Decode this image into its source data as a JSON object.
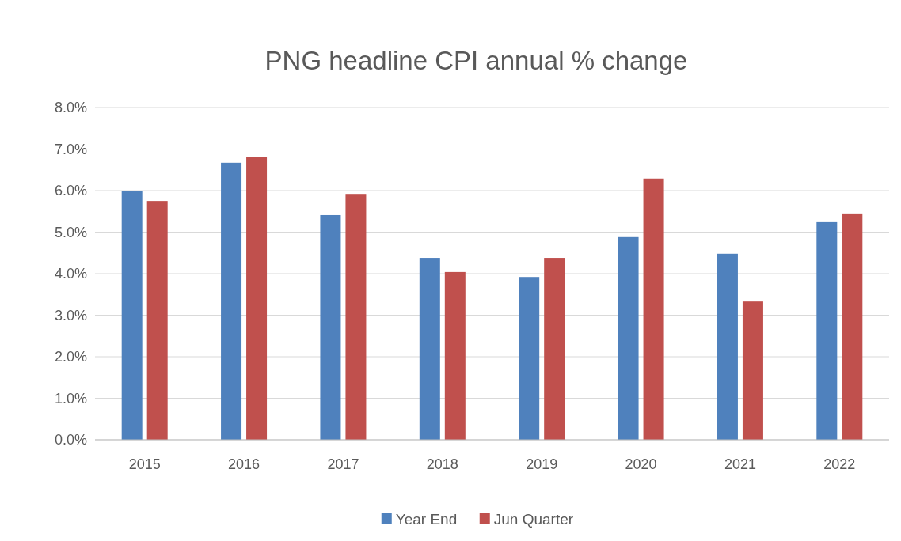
{
  "chart_data": {
    "type": "bar",
    "title": "PNG headline CPI annual % change",
    "categories": [
      "2015",
      "2016",
      "2017",
      "2018",
      "2019",
      "2020",
      "2021",
      "2022"
    ],
    "series": [
      {
        "name": "Year End",
        "color": "#4f81bd",
        "values": [
          6.0,
          6.67,
          5.41,
          4.38,
          3.92,
          4.88,
          4.48,
          5.24
        ]
      },
      {
        "name": "Jun Quarter",
        "color": "#c0504d",
        "values": [
          5.75,
          6.8,
          5.92,
          4.04,
          4.38,
          6.29,
          3.33,
          5.45
        ]
      }
    ],
    "ylim": [
      0,
      8
    ],
    "yticks": [
      {
        "value": 0,
        "label": "0.0%"
      },
      {
        "value": 1,
        "label": "1.0%"
      },
      {
        "value": 2,
        "label": "2.0%"
      },
      {
        "value": 3,
        "label": "3.0%"
      },
      {
        "value": 4,
        "label": "4.0%"
      },
      {
        "value": 5,
        "label": "5.0%"
      },
      {
        "value": 6,
        "label": "6.0%"
      },
      {
        "value": 7,
        "label": "7.0%"
      },
      {
        "value": 8,
        "label": "8.0%"
      }
    ],
    "grid": "y",
    "legend": "bottom"
  }
}
